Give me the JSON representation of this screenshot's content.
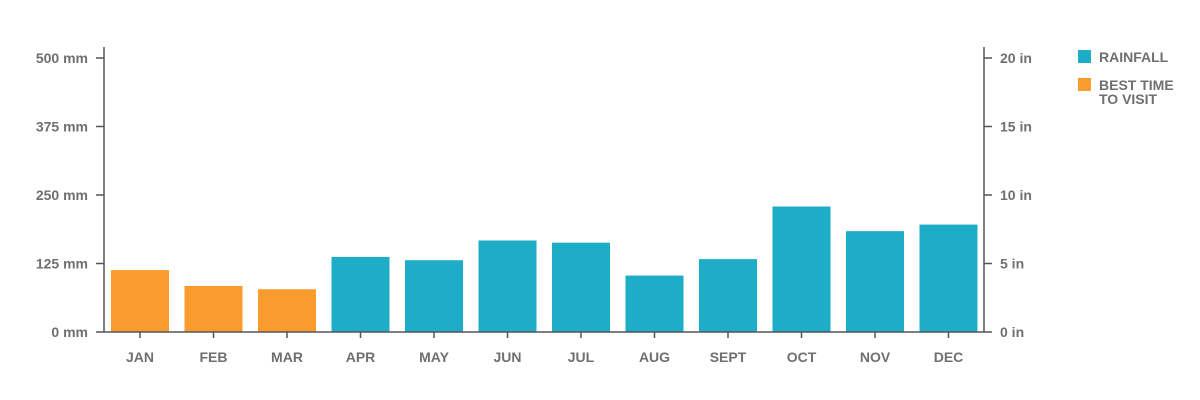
{
  "chart_data": {
    "type": "bar",
    "title": "",
    "xlabel": "",
    "ylabel": "",
    "categories": [
      "JAN",
      "FEB",
      "MAR",
      "APR",
      "MAY",
      "JUN",
      "JUL",
      "AUG",
      "SEPT",
      "OCT",
      "NOV",
      "DEC"
    ],
    "values": [
      113,
      84,
      78,
      137,
      131,
      167,
      163,
      103,
      133,
      229,
      184,
      196
    ],
    "bar_groups": [
      "best",
      "best",
      "best",
      "rain",
      "rain",
      "rain",
      "rain",
      "rain",
      "rain",
      "rain",
      "rain",
      "rain"
    ],
    "ylim": [
      0,
      500
    ],
    "y_ticks": [
      0,
      125,
      250,
      375,
      500
    ],
    "y_tick_labels": [
      "0 mm",
      "125 mm",
      "250 mm",
      "375 mm",
      "500 mm"
    ],
    "y2_ticks": [
      0,
      5,
      10,
      15,
      20
    ],
    "y2_tick_labels": [
      "0 in",
      "5 in",
      "10 in",
      "15 in",
      "20 in"
    ],
    "y2lim": [
      0,
      20
    ],
    "grid": false,
    "legend_position": "top-right",
    "legend": [
      {
        "key": "rain",
        "lines": [
          "RAINFALL"
        ],
        "color": "#1eadc6"
      },
      {
        "key": "best",
        "lines": [
          "BEST TIME",
          "TO VISIT"
        ],
        "color": "#f99b2d"
      }
    ],
    "colors": {
      "rain": "#1eadc6",
      "best": "#f99b2d",
      "axis": "#555555",
      "text": "#6f6f6f"
    }
  }
}
